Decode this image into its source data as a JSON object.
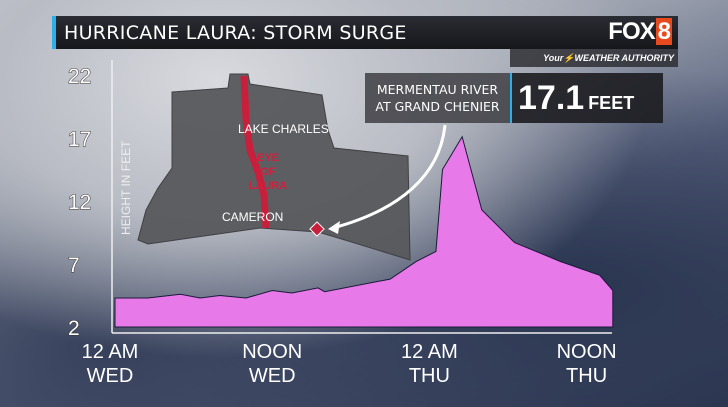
{
  "header": {
    "title": "HURRICANE LAURA: STORM SURGE",
    "logo": "FOX8",
    "tagline_your": "Your",
    "tagline_rest": "WEATHER AUTHORITY"
  },
  "callout": {
    "location_line1": "MERMENTAU RIVER",
    "location_line2": "AT GRAND CHENIER",
    "value": "17.1",
    "unit": "FEET"
  },
  "map": {
    "labels": {
      "city1": "LAKE CHARLES",
      "city2": "CAMERON",
      "eye1": "EYE",
      "eye2": "OF",
      "eye3": "LAURA"
    },
    "track_color": "#c8203c",
    "marker_color": "#c8203c"
  },
  "chart_data": {
    "type": "area",
    "title": "HURRICANE LAURA: STORM SURGE",
    "ylabel": "HEIGHT IN FEET",
    "xlabel": "",
    "ylim": [
      2,
      22
    ],
    "yticks": [
      22,
      17,
      12,
      7,
      2
    ],
    "xlim_hours": [
      0,
      38
    ],
    "xticks": [
      {
        "hour": 0,
        "l1": "12 AM",
        "l2": "WED"
      },
      {
        "hour": 12,
        "l1": "NOON",
        "l2": "WED"
      },
      {
        "hour": 24,
        "l1": "12 AM",
        "l2": "THU"
      },
      {
        "hour": 36,
        "l1": "NOON",
        "l2": "THU"
      }
    ],
    "fill_color": "#e879e8",
    "points": [
      [
        0,
        4.3
      ],
      [
        2.5,
        4.3
      ],
      [
        5,
        4.6
      ],
      [
        6.5,
        4.3
      ],
      [
        8,
        4.5
      ],
      [
        10,
        4.3
      ],
      [
        12,
        4.9
      ],
      [
        13.5,
        4.7
      ],
      [
        15.5,
        5.1
      ],
      [
        16,
        4.8
      ],
      [
        21,
        5.8
      ],
      [
        23,
        7.2
      ],
      [
        24.5,
        8
      ],
      [
        25,
        14.5
      ],
      [
        26.5,
        17.1
      ],
      [
        28,
        11.3
      ],
      [
        30.5,
        8.7
      ],
      [
        34,
        7.2
      ],
      [
        37,
        6.1
      ],
      [
        38,
        4.9
      ]
    ]
  }
}
